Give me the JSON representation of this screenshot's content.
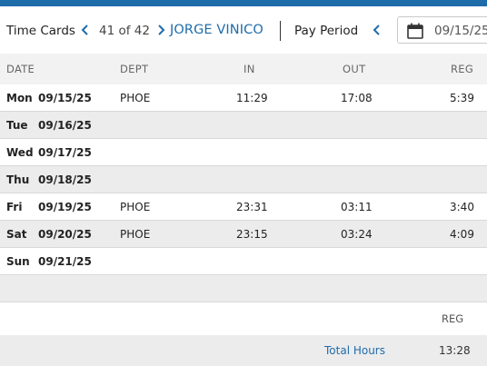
{
  "header": {
    "title": "Time Cards",
    "count": "41 of 42",
    "employee": "JORGE VINICO",
    "pay_period_label": "Pay Period",
    "date_value": "09/15/25"
  },
  "columns": {
    "date": "DATE",
    "dept": "DEPT",
    "in": "IN",
    "out": "OUT",
    "reg": "REG"
  },
  "rows": [
    {
      "day": "Mon",
      "date": "09/15/25",
      "dept": "PHOE",
      "in": "11:29",
      "out": "17:08",
      "reg": "5:39"
    },
    {
      "day": "Tue",
      "date": "09/16/25",
      "dept": "",
      "in": "",
      "out": "",
      "reg": ""
    },
    {
      "day": "Wed",
      "date": "09/17/25",
      "dept": "",
      "in": "",
      "out": "",
      "reg": ""
    },
    {
      "day": "Thu",
      "date": "09/18/25",
      "dept": "",
      "in": "",
      "out": "",
      "reg": ""
    },
    {
      "day": "Fri",
      "date": "09/19/25",
      "dept": "PHOE",
      "in": "23:31",
      "out": "03:11",
      "reg": "3:40"
    },
    {
      "day": "Sat",
      "date": "09/20/25",
      "dept": "PHOE",
      "in": "23:15",
      "out": "03:24",
      "reg": "4:09"
    },
    {
      "day": "Sun",
      "date": "09/21/25",
      "dept": "",
      "in": "",
      "out": "",
      "reg": ""
    }
  ],
  "totals": {
    "reg_header": "REG",
    "label": "Total Hours",
    "reg_total": "13:28"
  },
  "colors": {
    "accent": "#1f6cab",
    "row_alt": "#ececec",
    "header_bg": "#f2f2f2"
  },
  "icons": [
    "chevron-left-icon",
    "chevron-right-icon",
    "calendar-icon"
  ]
}
